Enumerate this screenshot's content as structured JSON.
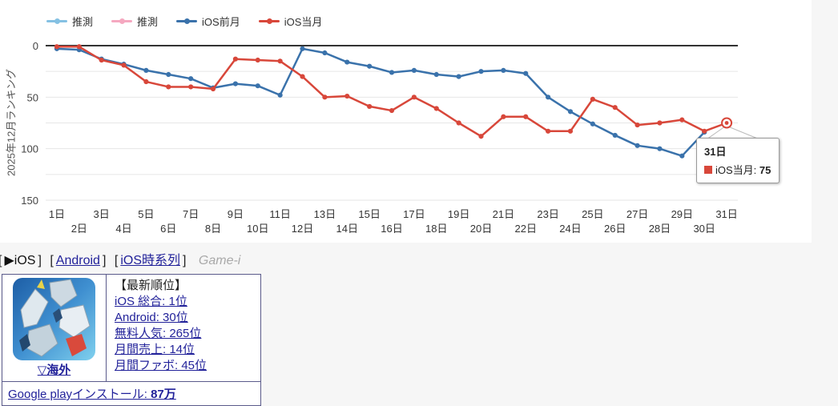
{
  "page": {
    "background": "#f6f6f6",
    "panel_background": "#ffffff",
    "link_color": "#22229a",
    "card_border_color": "#5b5b8b"
  },
  "chart_data": {
    "type": "line",
    "title": "",
    "ylabel": "2025年12月ランキング",
    "xlabel": "",
    "ylim": [
      0,
      150
    ],
    "y_inverted": true,
    "grid": "horizontal",
    "legend_position": "top",
    "y_ticks": [
      0,
      50,
      100,
      150
    ],
    "grid_ranks": [
      0,
      25,
      50,
      75,
      100,
      125,
      150
    ],
    "x_labels": [
      "1日",
      "2日",
      "3日",
      "4日",
      "5日",
      "6日",
      "7日",
      "8日",
      "9日",
      "10日",
      "11日",
      "12日",
      "13日",
      "14日",
      "15日",
      "16日",
      "17日",
      "18日",
      "19日",
      "20日",
      "21日",
      "22日",
      "23日",
      "24日",
      "25日",
      "26日",
      "27日",
      "28日",
      "29日",
      "30日",
      "31日"
    ],
    "series": [
      {
        "name": "推測",
        "color": "#85c1e3",
        "values": []
      },
      {
        "name": "推測",
        "color": "#f5a8c0",
        "values": []
      },
      {
        "name": "iOS前月",
        "color": "#3a72ab",
        "values": [
          3,
          4,
          13,
          18,
          24,
          28,
          32,
          41,
          37,
          39,
          48,
          3,
          7,
          16,
          20,
          26,
          24,
          28,
          30,
          25,
          24,
          27,
          50,
          64,
          76,
          87,
          97,
          100,
          107,
          84
        ]
      },
      {
        "name": "iOS当月",
        "color": "#d8473a",
        "values": [
          1,
          1,
          14,
          19,
          35,
          40,
          40,
          42,
          13,
          14,
          15,
          30,
          50,
          49,
          59,
          63,
          50,
          61,
          75,
          88,
          69,
          69,
          83,
          83,
          52,
          60,
          77,
          75,
          72,
          83,
          75
        ],
        "selected_point": {
          "day": 31,
          "value": 75
        }
      }
    ]
  },
  "tooltip": {
    "title": "31日",
    "series_label": "iOS当月",
    "separator": ": ",
    "value": "75"
  },
  "nav": {
    "bracket_open": "[",
    "bracket_close": "]",
    "current_item": "▶iOS",
    "link_android": "Android",
    "link_ios_timeseries": "iOS時系列",
    "brand": "Game-i"
  },
  "card": {
    "app_icon": "gundam-mecha-artwork",
    "overseas_label": "▽海外",
    "latest_header": "【最新順位】",
    "rankings": [
      "iOS 総合: 1位",
      "Android: 30位",
      "無料人気: 265位",
      "月間売上: 14位",
      "月間ファボ: 45位"
    ],
    "google_play_label": "Google playインストール: ",
    "google_play_value": "87万"
  }
}
